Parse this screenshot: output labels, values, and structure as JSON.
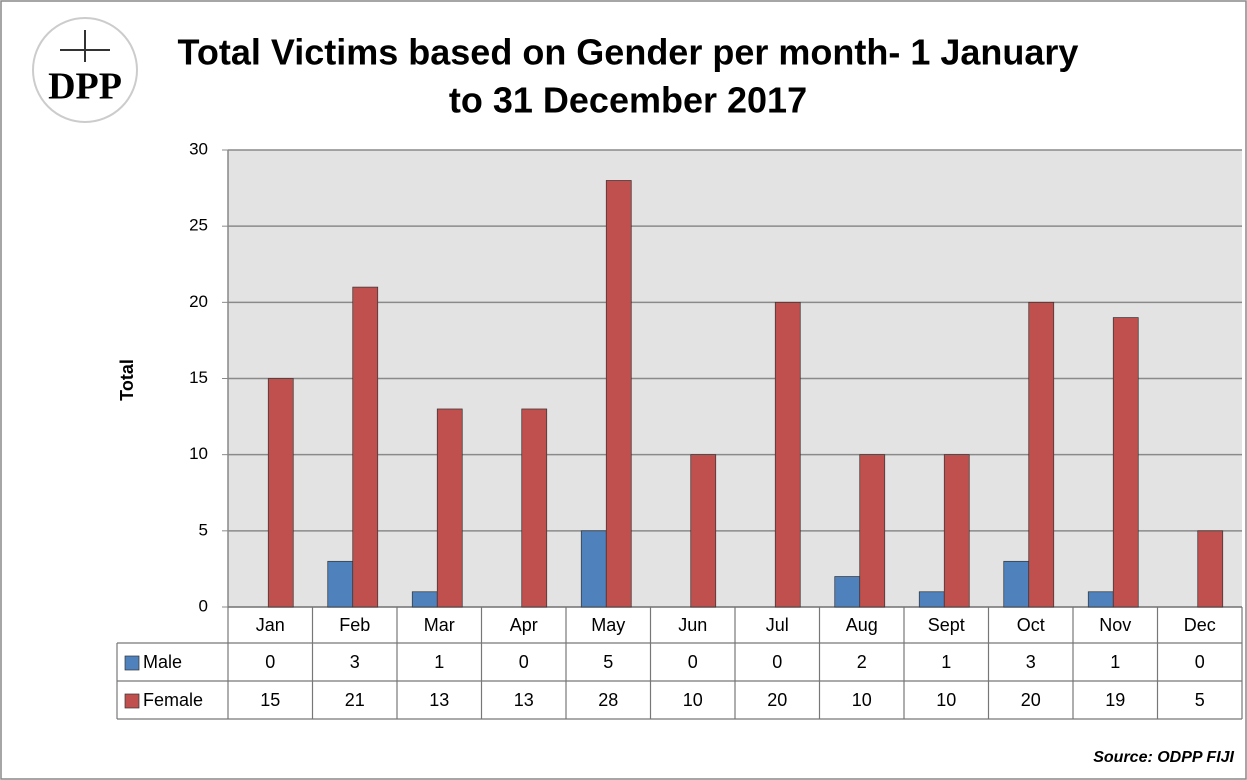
{
  "logo_text": "DPP",
  "source": "Source: ODPP FIJI",
  "chart_data": {
    "type": "bar",
    "title": [
      "Total Victims based on Gender per month- 1 January",
      "to 31 December 2017"
    ],
    "y_label": "Total",
    "categories": [
      "Jan",
      "Feb",
      "Mar",
      "Apr",
      "May",
      "Jun",
      "Jul",
      "Aug",
      "Sept",
      "Oct",
      "Nov",
      "Dec"
    ],
    "series": [
      {
        "name": "Male",
        "color": "#4f81bd",
        "values": [
          0,
          3,
          1,
          0,
          5,
          0,
          0,
          2,
          1,
          3,
          1,
          0
        ]
      },
      {
        "name": "Female",
        "color": "#c0504d",
        "values": [
          15,
          21,
          13,
          13,
          28,
          10,
          20,
          10,
          10,
          20,
          19,
          5
        ]
      }
    ],
    "ylim": [
      0,
      30
    ],
    "yticks": [
      0,
      5,
      10,
      15,
      20,
      25,
      30
    ],
    "grid": true
  }
}
